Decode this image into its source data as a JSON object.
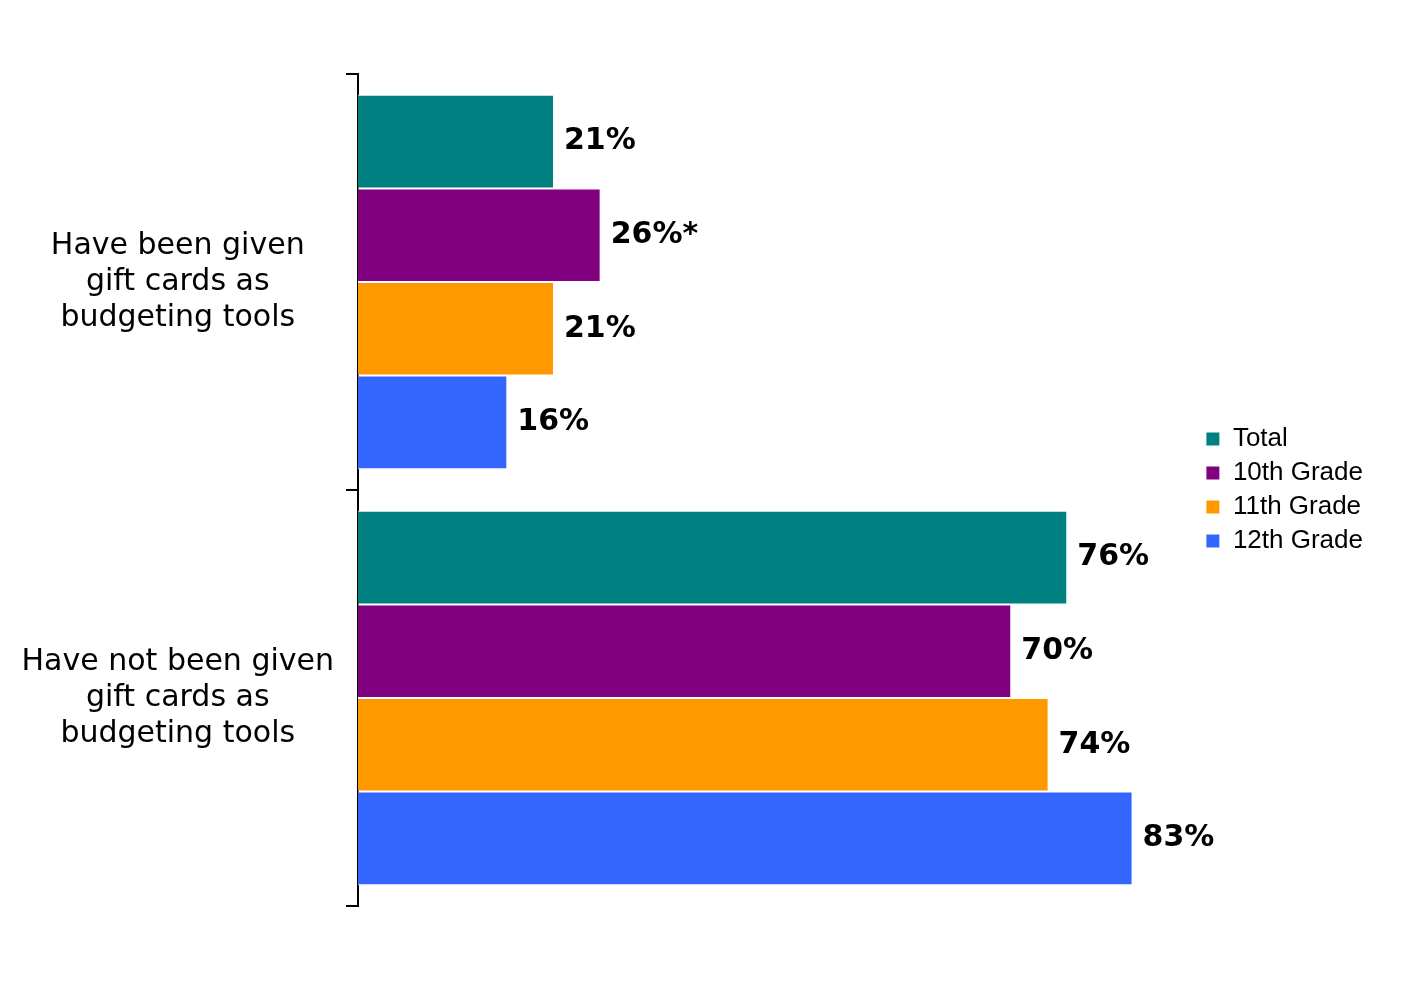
{
  "chart_data": {
    "type": "bar",
    "orientation": "horizontal",
    "categories": [
      "Have been given gift cards as budgeting tools",
      "Have not been given gift cards as budgeting tools"
    ],
    "series": [
      {
        "name": "Total",
        "color": "#008080",
        "values": [
          21,
          76
        ],
        "value_labels": [
          "21%",
          "76%"
        ]
      },
      {
        "name": "10th Grade",
        "color": "#800080",
        "values": [
          26,
          70
        ],
        "value_labels": [
          "26%*",
          "70%"
        ]
      },
      {
        "name": "11th Grade",
        "color": "#ff9900",
        "values": [
          21,
          74
        ],
        "value_labels": [
          "21%",
          "74%"
        ]
      },
      {
        "name": "12th Grade",
        "color": "#3366ff",
        "values": [
          16,
          83
        ],
        "value_labels": [
          "16%",
          "83%"
        ]
      }
    ],
    "legend": "right"
  }
}
